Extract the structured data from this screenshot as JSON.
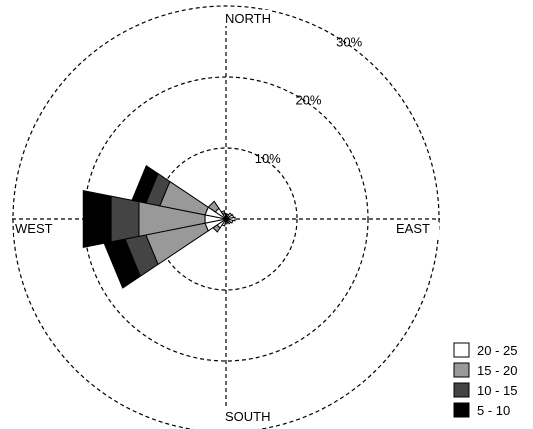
{
  "chart_data": {
    "type": "wind_rose",
    "directions": [
      "NORTH",
      "EAST",
      "SOUTH",
      "WEST"
    ],
    "ring_labels": [
      "10%",
      "20%",
      "30%"
    ],
    "rings": [
      10,
      20,
      30
    ],
    "r_max": 30,
    "grid": true,
    "legend_position": "bottom-right",
    "series": [
      {
        "name": "20 - 25",
        "color": "#ffffff"
      },
      {
        "name": "15 - 20",
        "color": "#999999"
      },
      {
        "name": "10 - 15",
        "color": "#444444"
      },
      {
        "name": "5 - 10",
        "color": "#000000"
      }
    ],
    "petals": [
      {
        "bearing": 0,
        "values": [
          0.5,
          0,
          0,
          0
        ]
      },
      {
        "bearing": 22.5,
        "values": [
          0.7,
          0,
          0,
          0
        ]
      },
      {
        "bearing": 45,
        "values": [
          1.0,
          0,
          0,
          0
        ]
      },
      {
        "bearing": 67.5,
        "values": [
          1.1,
          0,
          0,
          0
        ]
      },
      {
        "bearing": 90,
        "values": [
          1.3,
          0,
          0,
          0
        ]
      },
      {
        "bearing": 112.5,
        "values": [
          1.0,
          0,
          0,
          0
        ]
      },
      {
        "bearing": 135,
        "values": [
          0.8,
          0,
          0,
          0
        ]
      },
      {
        "bearing": 157.5,
        "values": [
          0.6,
          0,
          0,
          0
        ]
      },
      {
        "bearing": 180,
        "values": [
          0.7,
          0,
          0,
          0
        ]
      },
      {
        "bearing": 202.5,
        "values": [
          1.0,
          0,
          0,
          0
        ]
      },
      {
        "bearing": 225,
        "values": [
          1.5,
          0.7,
          0,
          0
        ]
      },
      {
        "bearing": 247.5,
        "values": [
          3.0,
          8.5,
          3.0,
          3.0
        ]
      },
      {
        "bearing": 270,
        "values": [
          3.0,
          9.5,
          4.0,
          4.0
        ]
      },
      {
        "bearing": 292.5,
        "values": [
          3.0,
          6.5,
          2.0,
          2.0
        ]
      },
      {
        "bearing": 315,
        "values": [
          1.8,
          1.2,
          0,
          0
        ]
      },
      {
        "bearing": 337.5,
        "values": [
          0.8,
          0.4,
          0,
          0
        ]
      }
    ]
  }
}
